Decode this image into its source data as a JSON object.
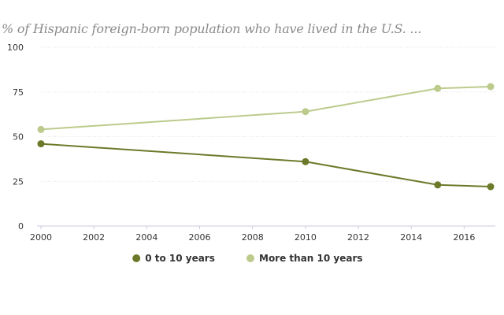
{
  "chart_data": {
    "type": "line",
    "title": "% of Hispanic foreign-born population who have lived in the U.S. ...",
    "xlabel": "",
    "ylabel": "",
    "x": [
      2000,
      2010,
      2015,
      2017
    ],
    "xlim": [
      2000,
      2017
    ],
    "ylim": [
      0,
      100
    ],
    "x_ticks": [
      "2000",
      "2002",
      "2004",
      "2006",
      "2008",
      "2010",
      "2012",
      "2014",
      "2016"
    ],
    "y_ticks": [
      "0",
      "25",
      "50",
      "75",
      "100"
    ],
    "grid": true,
    "legend_position": "bottom",
    "series": [
      {
        "name": "0 to 10 years",
        "color": "#6b7a2a",
        "values": [
          46,
          36,
          23,
          22
        ]
      },
      {
        "name": "More than 10 years",
        "color": "#bccb8c",
        "values": [
          54,
          64,
          77,
          78
        ]
      }
    ]
  }
}
